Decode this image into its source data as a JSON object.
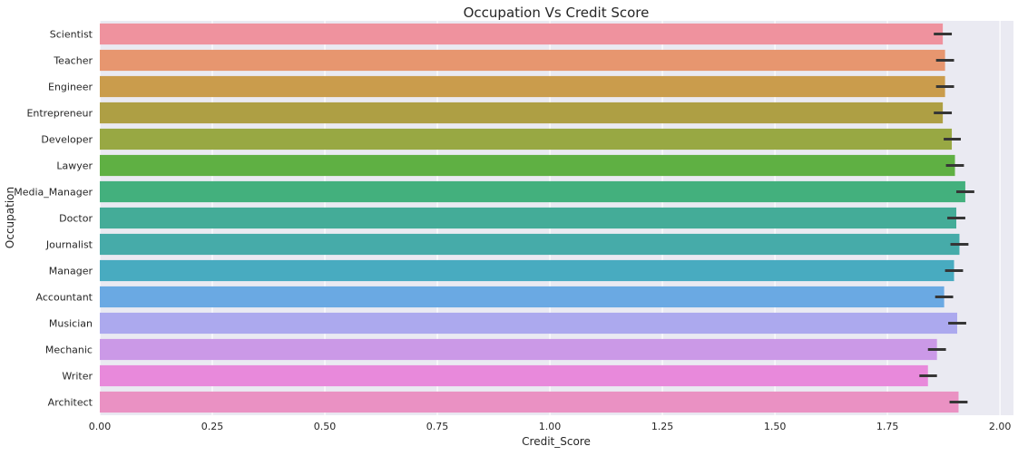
{
  "chart_data": {
    "type": "bar",
    "orientation": "horizontal",
    "title": "Occupation Vs Credit Score",
    "xlabel": "Credit_Score",
    "ylabel": "Occupation",
    "xlim": [
      0,
      2.03
    ],
    "xticks": [
      "0.00",
      "0.25",
      "0.50",
      "0.75",
      "1.00",
      "1.25",
      "1.50",
      "1.75",
      "2.00"
    ],
    "grid": true,
    "background_color": "#eaeaf2",
    "error_bar_color": "#363636",
    "categories": [
      "Scientist",
      "Teacher",
      "Engineer",
      "Entrepreneur",
      "Developer",
      "Lawyer",
      "Media_Manager",
      "Doctor",
      "Journalist",
      "Manager",
      "Accountant",
      "Musician",
      "Mechanic",
      "Writer",
      "Architect"
    ],
    "values": [
      1.873,
      1.878,
      1.878,
      1.873,
      1.893,
      1.9,
      1.923,
      1.903,
      1.91,
      1.898,
      1.876,
      1.905,
      1.86,
      1.84,
      1.908
    ],
    "error_low": [
      1.853,
      1.858,
      1.858,
      1.853,
      1.875,
      1.88,
      1.903,
      1.883,
      1.89,
      1.878,
      1.856,
      1.885,
      1.84,
      1.821,
      1.888
    ],
    "error_high": [
      1.893,
      1.898,
      1.898,
      1.893,
      1.913,
      1.92,
      1.943,
      1.923,
      1.93,
      1.918,
      1.896,
      1.925,
      1.88,
      1.86,
      1.928
    ],
    "colors": [
      "#ef929e",
      "#e7966f",
      "#ca9c4c",
      "#ae9f44",
      "#98a843",
      "#5fb043",
      "#43b07d",
      "#44ac98",
      "#46aba9",
      "#48abc0",
      "#6aa9e3",
      "#aca9ee",
      "#cb99e7",
      "#e889db",
      "#ea91c3"
    ]
  }
}
